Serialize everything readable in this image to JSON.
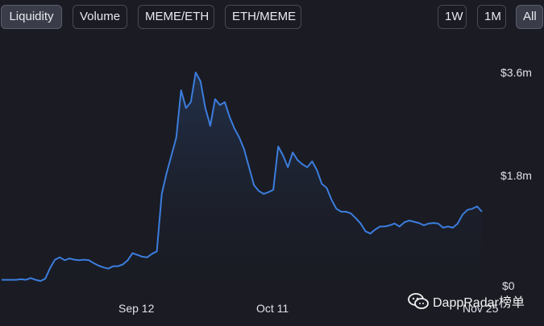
{
  "tabs": {
    "liquidity": "Liquidity",
    "volume": "Volume",
    "meme_eth": "MEME/ETH",
    "eth_meme": "ETH/MEME"
  },
  "ranges": {
    "week": "1W",
    "month": "1M",
    "all": "All"
  },
  "watermark": "DappRadar榜单",
  "colors": {
    "line": "#3b7ddd",
    "fill_top": "#23324d",
    "background": "#1a1b23"
  },
  "chart_data": {
    "type": "area",
    "y_tick_labels": [
      "$3.6m",
      "$1.8m",
      "$0"
    ],
    "x_tick_labels": [
      "Sep 12",
      "Oct 11",
      "Nov 25"
    ],
    "ylim": [
      0,
      3.6
    ],
    "series": [
      {
        "values": [
          0.1,
          0.1,
          0.1,
          0.1,
          0.11,
          0.1,
          0.13,
          0.1,
          0.08,
          0.12,
          0.3,
          0.44,
          0.48,
          0.43,
          0.46,
          0.44,
          0.43,
          0.44,
          0.43,
          0.38,
          0.34,
          0.31,
          0.29,
          0.33,
          0.33,
          0.36,
          0.43,
          0.55,
          0.52,
          0.49,
          0.48,
          0.54,
          0.58,
          1.55,
          1.9,
          2.2,
          2.5,
          3.3,
          3.0,
          3.1,
          3.6,
          3.45,
          3.0,
          2.7,
          3.15,
          3.05,
          3.1,
          2.85,
          2.65,
          2.5,
          2.3,
          2.0,
          1.7,
          1.6,
          1.55,
          1.58,
          1.62,
          2.35,
          2.2,
          2.0,
          2.25,
          2.12,
          2.05,
          2.0,
          2.1,
          1.95,
          1.72,
          1.65,
          1.45,
          1.3,
          1.25,
          1.25,
          1.22,
          1.14,
          1.05,
          0.92,
          0.88,
          0.95,
          1.0,
          1.0,
          1.02,
          1.05,
          1.0,
          1.07,
          1.1,
          1.08,
          1.06,
          1.02,
          1.05,
          1.06,
          1.05,
          0.98,
          1.0,
          0.98,
          1.05,
          1.2,
          1.28,
          1.3,
          1.34,
          1.25
        ]
      }
    ],
    "grid": false,
    "legend": "none"
  }
}
